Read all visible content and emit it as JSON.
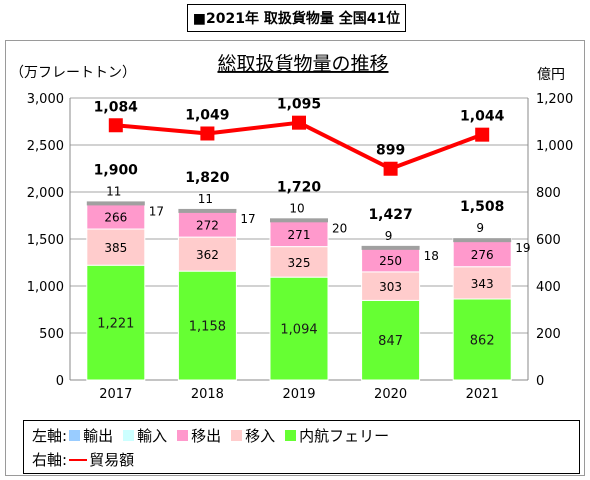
{
  "header": {
    "title": "■2021年 取扱貨物量 全国41位"
  },
  "chart_data": {
    "type": "bar",
    "title": "総取扱貨物量の推移",
    "categories": [
      "2017",
      "2018",
      "2019",
      "2020",
      "2021"
    ],
    "y_left": {
      "unit_label": "（万フレートトン）",
      "ylim": [
        0,
        3000
      ],
      "ticks": [
        "0",
        "500",
        "1,000",
        "1,500",
        "2,000",
        "2,500",
        "3,000"
      ]
    },
    "y_right": {
      "unit_label": "億円",
      "ylim": [
        0,
        1200
      ],
      "ticks": [
        "0",
        "200",
        "400",
        "600",
        "800",
        "1,000",
        "1,200"
      ]
    },
    "stacked_series": [
      {
        "name": "内航フェリー",
        "color": "#66ff33",
        "values": [
          1221,
          1158,
          1094,
          847,
          862
        ],
        "labels": [
          "1,221",
          "1,158",
          "1,094",
          "847",
          "862"
        ]
      },
      {
        "name": "移入",
        "color": "#ffcccc",
        "values": [
          385,
          362,
          325,
          303,
          343
        ],
        "labels": [
          "385",
          "362",
          "325",
          "303",
          "343"
        ]
      },
      {
        "name": "移出",
        "color": "#ff99cc",
        "values": [
          266,
          272,
          271,
          250,
          276
        ],
        "labels": [
          "266",
          "272",
          "271",
          "250",
          "276"
        ]
      },
      {
        "name": "輸入",
        "color": "#ccffff",
        "values": [
          17,
          17,
          20,
          18,
          19
        ],
        "labels": [
          "17",
          "17",
          "20",
          "18",
          "19"
        ]
      },
      {
        "name": "輸出",
        "color": "#99ccff",
        "values": [
          11,
          11,
          10,
          9,
          9
        ],
        "labels": [
          "11",
          "11",
          "10",
          "9",
          "9"
        ]
      }
    ],
    "totals": [
      1900,
      1820,
      1720,
      1427,
      1508
    ],
    "total_labels": [
      "1,900",
      "1,820",
      "1,720",
      "1,427",
      "1,508"
    ],
    "line_series": {
      "name": "貿易額",
      "color": "#ff0000",
      "axis": "right",
      "values": [
        1084,
        1049,
        1095,
        899,
        1044
      ],
      "labels": [
        "1,084",
        "1,049",
        "1,095",
        "899",
        "1,044"
      ]
    },
    "grid": true
  },
  "legend": {
    "left_axis_label": "左軸:",
    "right_axis_label": "右軸:",
    "items_left": [
      {
        "label": "輸出",
        "color": "#99ccff"
      },
      {
        "label": "輸入",
        "color": "#ccffff"
      },
      {
        "label": "移出",
        "color": "#ff99cc"
      },
      {
        "label": "移入",
        "color": "#ffcccc"
      },
      {
        "label": "内航フェリー",
        "color": "#66ff33"
      }
    ],
    "items_right": [
      {
        "label": "貿易額",
        "color": "#ff0000"
      }
    ]
  }
}
